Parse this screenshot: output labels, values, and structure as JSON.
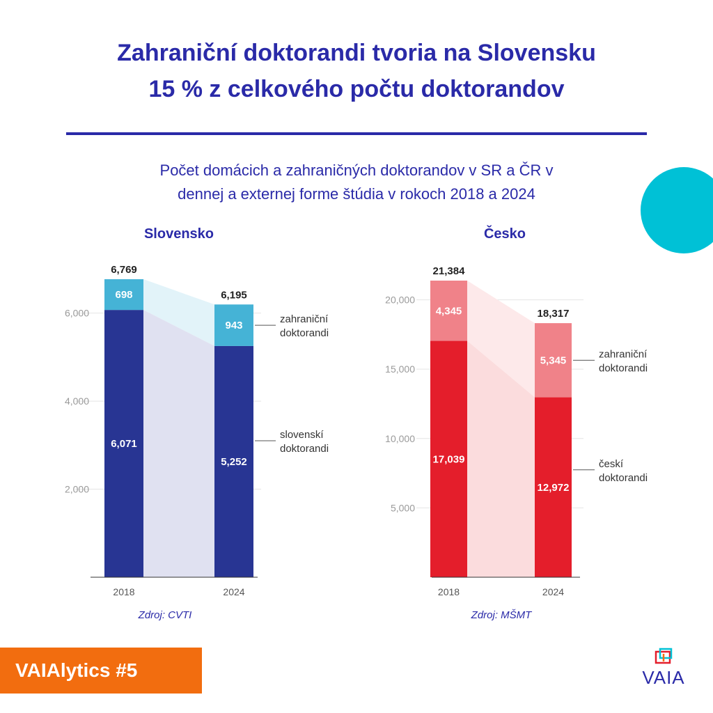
{
  "title_line1": "Zahraniční doktorandi tvoria na Slovensku",
  "title_line2": "15 % z celkového počtu doktorandov",
  "subtitle_line1": "Počet domácich a zahraničných doktorandov v SR a ČR v",
  "subtitle_line2": "dennej a externej forme štúdia v rokoch 2018 a 2024",
  "badge": "VAIAlytics #5",
  "logo_text": "VAIA",
  "colors": {
    "title": "#2a2aa8",
    "sk_domestic": "#283593",
    "sk_foreign": "#45b3d6",
    "cz_domestic": "#e41e2b",
    "cz_foreign": "#f08289",
    "accent_circle": "#00c1d6",
    "badge": "#f26d0f"
  },
  "chart_data": [
    {
      "type": "bar",
      "title": "Slovensko",
      "source": "Zdroj: CVTI",
      "stacked": true,
      "categories": [
        "2018",
        "2024"
      ],
      "series": [
        {
          "name": "slovenskí doktorandi",
          "label_lines": [
            "slovenskí",
            "doktorandi"
          ],
          "values": [
            6071,
            5252
          ],
          "value_labels": [
            "6,071",
            "5,252"
          ]
        },
        {
          "name": "zahraniční doktorandi",
          "label_lines": [
            "zahraniční",
            "doktorandi"
          ],
          "values": [
            698,
            943
          ],
          "value_labels": [
            "698",
            "943"
          ]
        }
      ],
      "totals": [
        6769,
        6195
      ],
      "total_labels": [
        "6,769",
        "6,195"
      ],
      "yticks": [
        2000,
        4000,
        6000
      ],
      "ytick_labels": [
        "2,000",
        "4,000",
        "6,000"
      ],
      "ylim": [
        0,
        6769
      ],
      "grid": true
    },
    {
      "type": "bar",
      "title": "Česko",
      "source": "Zdroj: MŠMT",
      "stacked": true,
      "categories": [
        "2018",
        "2024"
      ],
      "series": [
        {
          "name": "českí doktorandi",
          "label_lines": [
            "českí",
            "doktorandi"
          ],
          "values": [
            17039,
            12972
          ],
          "value_labels": [
            "17,039",
            "12,972"
          ]
        },
        {
          "name": "zahraniční doktorandi",
          "label_lines": [
            "zahraniční",
            "doktorandi"
          ],
          "values": [
            4345,
            5345
          ],
          "value_labels": [
            "4,345",
            "5,345"
          ]
        }
      ],
      "totals": [
        21384,
        18317
      ],
      "total_labels": [
        "21,384",
        "18,317"
      ],
      "yticks": [
        5000,
        10000,
        15000,
        20000
      ],
      "ytick_labels": [
        "5,000",
        "10,000",
        "15,000",
        "20,000"
      ],
      "ylim": [
        0,
        21384
      ],
      "grid": true
    }
  ]
}
